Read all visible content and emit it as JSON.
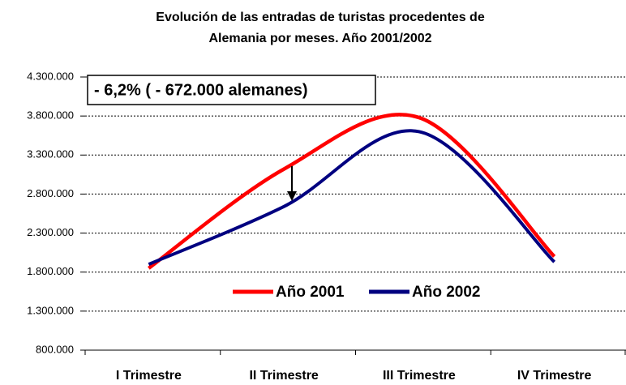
{
  "chart_data": {
    "type": "line",
    "title": [
      "Evolución de las entradas de turistas procedentes de",
      "Alemania por meses. Año 2001/2002"
    ],
    "annotation": "- 6,2% ( - 672.000 alemanes)",
    "categories": [
      "I Trimestre",
      "II Trimestre",
      "III Trimestre",
      "IV Trimestre"
    ],
    "series": [
      {
        "name": "Año 2001",
        "color": "#ff0000",
        "values": [
          1850000,
          3120000,
          3780000,
          2000000
        ]
      },
      {
        "name": "Año 2002",
        "color": "#000080",
        "values": [
          1900000,
          2640000,
          3600000,
          1930000
        ]
      }
    ],
    "ylim": [
      800000,
      4300000
    ],
    "yticks": [
      {
        "value": 800000,
        "label": "800.000"
      },
      {
        "value": 1300000,
        "label": "1.300.000"
      },
      {
        "value": 1800000,
        "label": "1.800.000"
      },
      {
        "value": 2300000,
        "label": "2.300.000"
      },
      {
        "value": 2800000,
        "label": "2.800.000"
      },
      {
        "value": 3300000,
        "label": "3.300.000"
      },
      {
        "value": 3800000,
        "label": "3.800.000"
      },
      {
        "value": 4300000,
        "label": "4.300.000"
      }
    ],
    "grid": true
  }
}
